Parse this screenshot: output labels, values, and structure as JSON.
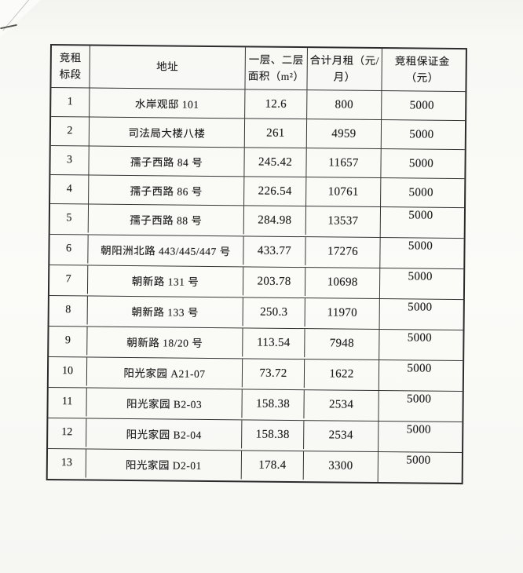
{
  "colors": {
    "paper": "#f7f7f4",
    "ink": "#1e1e1e",
    "table_line": "#343434"
  },
  "table": {
    "headers": [
      {
        "lines": [
          "竞租",
          "标段"
        ]
      },
      {
        "lines": [
          "地址"
        ]
      },
      {
        "lines": [
          "一层、二层",
          "面积（m²）"
        ]
      },
      {
        "lines": [
          "合计月租（元/",
          "月）"
        ]
      },
      {
        "lines": [
          "竞租保证金",
          "（元）"
        ]
      }
    ],
    "rows": [
      {
        "no": "1",
        "address": "水岸观邸 101",
        "area": "12.6",
        "rent": "800",
        "deposit": "5000"
      },
      {
        "no": "2",
        "address": "司法局大楼八楼",
        "area": "261",
        "rent": "4959",
        "deposit": "5000"
      },
      {
        "no": "3",
        "address": "孺子西路 84 号",
        "area": "245.42",
        "rent": "11657",
        "deposit": "5000"
      },
      {
        "no": "4",
        "address": "孺子西路 86 号",
        "area": "226.54",
        "rent": "10761",
        "deposit": "5000"
      },
      {
        "no": "5",
        "address": "孺子西路 88 号",
        "area": "284.98",
        "rent": "13537",
        "deposit": "5000"
      },
      {
        "no": "6",
        "address": "朝阳洲北路 443/445/447 号",
        "area": "433.77",
        "rent": "17276",
        "deposit": "5000"
      },
      {
        "no": "7",
        "address": "朝新路 131 号",
        "area": "203.78",
        "rent": "10698",
        "deposit": "5000"
      },
      {
        "no": "8",
        "address": "朝新路 133 号",
        "area": "250.3",
        "rent": "11970",
        "deposit": "5000"
      },
      {
        "no": "9",
        "address": "朝新路 18/20 号",
        "area": "113.54",
        "rent": "7948",
        "deposit": "5000"
      },
      {
        "no": "10",
        "address": "阳光家园 A21-07",
        "area": "73.72",
        "rent": "1622",
        "deposit": "5000"
      },
      {
        "no": "11",
        "address": "阳光家园 B2-03",
        "area": "158.38",
        "rent": "2534",
        "deposit": "5000"
      },
      {
        "no": "12",
        "address": "阳光家园 B2-04",
        "area": "158.38",
        "rent": "2534",
        "deposit": "5000"
      },
      {
        "no": "13",
        "address": "阳光家园 D2-01",
        "area": "178.4",
        "rent": "3300",
        "deposit": "5000"
      }
    ]
  }
}
